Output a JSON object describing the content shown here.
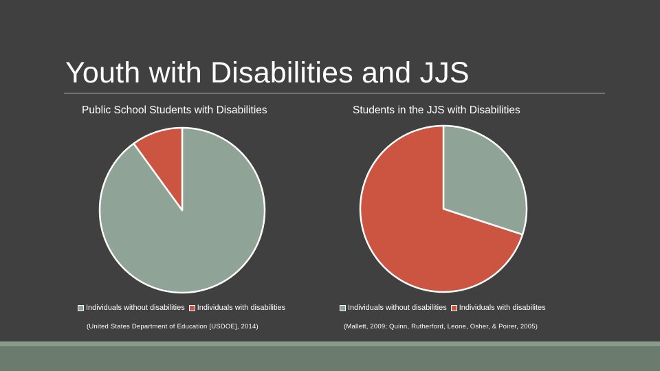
{
  "slide": {
    "title": "Youth with Disabilities and JJS"
  },
  "colors": {
    "background": "#404040",
    "without": "#8fa397",
    "with": "#cc5541",
    "footer": "#6b7b6e"
  },
  "chart_data": [
    {
      "type": "pie",
      "title": "Public School Students with Disabilities",
      "categories": [
        "Individuals without disabilities",
        "Individuals with disabilities"
      ],
      "values": [
        90,
        10
      ],
      "legend_position": "bottom",
      "source": "(United States Department of Education [USDOE], 2014)"
    },
    {
      "type": "pie",
      "title": "Students in the JJS with Disabilities",
      "categories": [
        "Individuals without disabilities",
        "Individuals with disabilites"
      ],
      "values": [
        30,
        70
      ],
      "legend_position": "bottom",
      "source": "(Mallett, 2009; Quinn, Rutherford, Leone, Osher, & Poirer, 2005)"
    }
  ]
}
